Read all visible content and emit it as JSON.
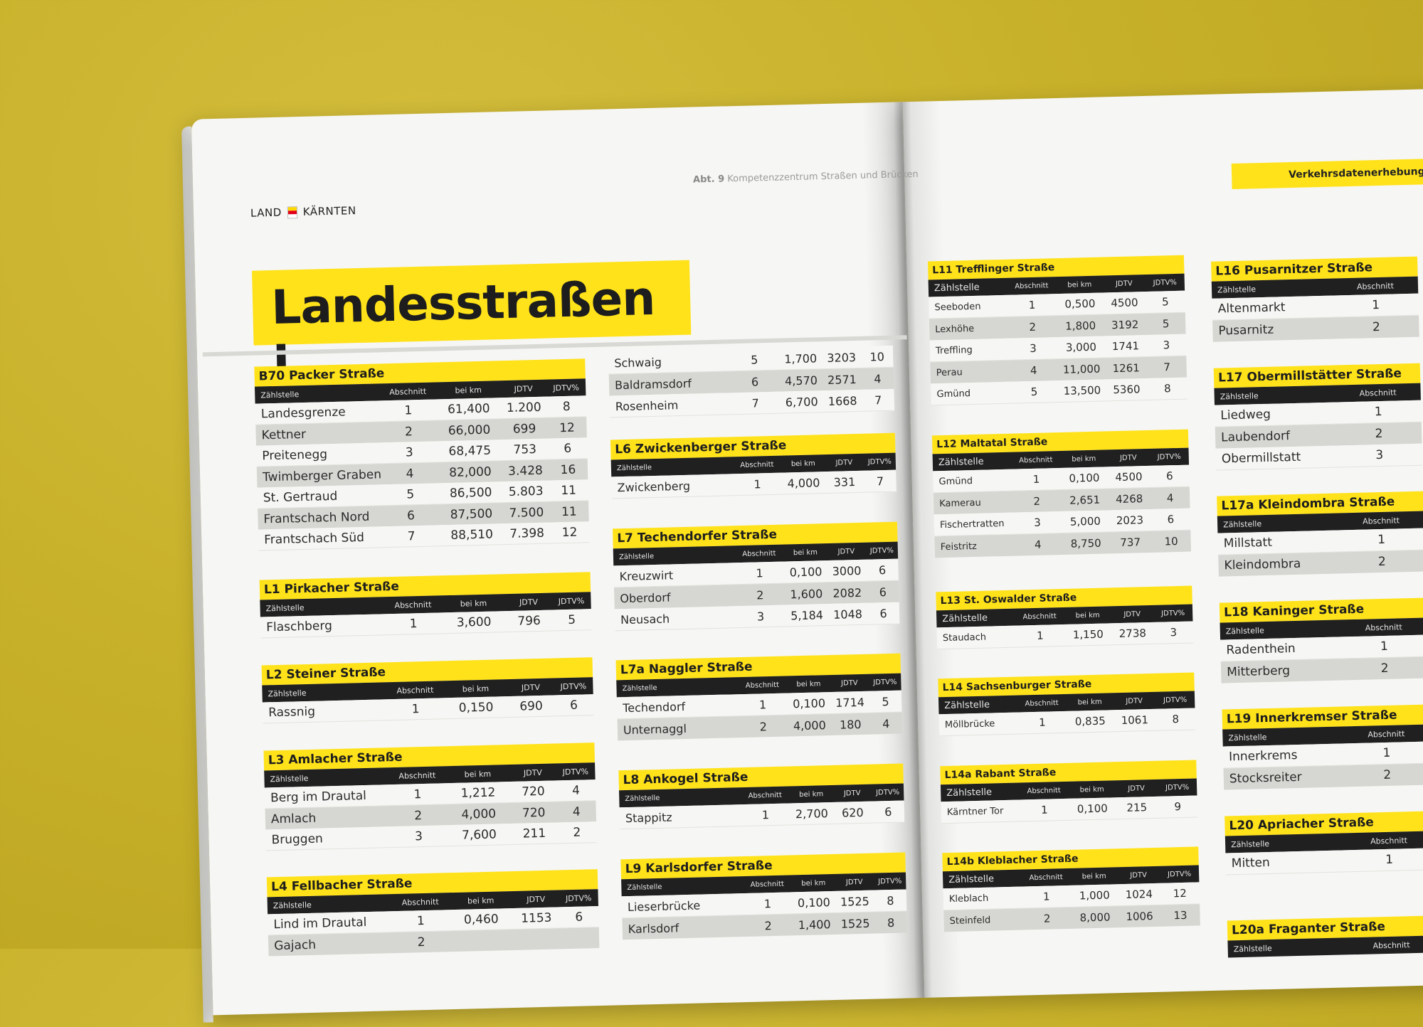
{
  "header": {
    "logo_left": "LAND",
    "logo_right": "KÄRNTEN",
    "department_bold": "Abt. 9",
    "department_text": "Kompetenzzentrum Straßen und Brücken",
    "section_label": "Verkehrsdatenerhebung",
    "title": "Landesstraßen L"
  },
  "colors": {
    "accent": "#ffe21a",
    "header_bar": "#202020",
    "background": "#c8b12a"
  },
  "columns": {
    "station": "Zählstelle",
    "section": "Abschnitt",
    "km": "bei km",
    "jdtv": "JDTV",
    "jdtv_pct": "JDTV%"
  },
  "col1": [
    {
      "title": "B70 Packer Straße",
      "rows": [
        [
          "Landesgrenze",
          "1",
          "61,400",
          "1.200",
          "8"
        ],
        [
          "Kettner",
          "2",
          "66,000",
          "699",
          "12"
        ],
        [
          "Preitenegg",
          "3",
          "68,475",
          "753",
          "6"
        ],
        [
          "Twimberger Graben",
          "4",
          "82,000",
          "3.428",
          "16"
        ],
        [
          "St. Gertraud",
          "5",
          "86,500",
          "5.803",
          "11"
        ],
        [
          "Frantschach Nord",
          "6",
          "87,500",
          "7.500",
          "11"
        ],
        [
          "Frantschach Süd",
          "7",
          "88,510",
          "7.398",
          "12"
        ]
      ]
    },
    {
      "title": "L1 Pirkacher Straße",
      "rows": [
        [
          "Flaschberg",
          "1",
          "3,600",
          "796",
          "5"
        ]
      ]
    },
    {
      "title": "L2 Steiner Straße",
      "rows": [
        [
          "Rassnig",
          "1",
          "0,150",
          "690",
          "6"
        ]
      ]
    },
    {
      "title": "L3 Amlacher Straße",
      "rows": [
        [
          "Berg im Drautal",
          "1",
          "1,212",
          "720",
          "4"
        ],
        [
          "Amlach",
          "2",
          "4,000",
          "720",
          "4"
        ],
        [
          "Bruggen",
          "3",
          "7,600",
          "211",
          "2"
        ]
      ]
    },
    {
      "title": "L4 Fellbacher Straße",
      "rows": [
        [
          "Lind im Drautal",
          "1",
          "0,460",
          "1153",
          "6"
        ],
        [
          "Gajach",
          "2",
          "",
          "",
          ""
        ]
      ]
    }
  ],
  "col2_top": {
    "rows": [
      [
        "Schwaig",
        "5",
        "1,700",
        "3203",
        "10"
      ],
      [
        "Baldramsdorf",
        "6",
        "4,570",
        "2571",
        "4"
      ],
      [
        "Rosenheim",
        "7",
        "6,700",
        "1668",
        "7"
      ]
    ]
  },
  "col2": [
    {
      "title": "L6 Zwickenberger Straße",
      "rows": [
        [
          "Zwickenberg",
          "1",
          "4,000",
          "331",
          "7"
        ]
      ]
    },
    {
      "title": "L7 Techendorfer Straße",
      "rows": [
        [
          "Kreuzwirt",
          "1",
          "0,100",
          "3000",
          "6"
        ],
        [
          "Oberdorf",
          "2",
          "1,600",
          "2082",
          "6"
        ],
        [
          "Neusach",
          "3",
          "5,184",
          "1048",
          "6"
        ]
      ]
    },
    {
      "title": "L7a Naggler Straße",
      "rows": [
        [
          "Techendorf",
          "1",
          "0,100",
          "1714",
          "5"
        ],
        [
          "Unternaggl",
          "2",
          "4,000",
          "180",
          "4"
        ]
      ]
    },
    {
      "title": "L8 Ankogel Straße",
      "rows": [
        [
          "Stappitz",
          "1",
          "2,700",
          "620",
          "6"
        ]
      ]
    },
    {
      "title": "L9 Karlsdorfer Straße",
      "rows": [
        [
          "Lieserbrücke",
          "1",
          "0,100",
          "1525",
          "8"
        ],
        [
          "Karlsdorf",
          "2",
          "1,400",
          "1525",
          "8"
        ]
      ]
    }
  ],
  "col3": [
    {
      "title": "L11 Trefflinger Straße",
      "rows": [
        [
          "Seeboden",
          "1",
          "0,500",
          "4500",
          "5"
        ],
        [
          "Lexhöhe",
          "2",
          "1,800",
          "3192",
          "5"
        ],
        [
          "Treffling",
          "3",
          "3,000",
          "1741",
          "3"
        ],
        [
          "Perau",
          "4",
          "11,000",
          "1261",
          "7"
        ],
        [
          "Gmünd",
          "5",
          "13,500",
          "5360",
          "8"
        ]
      ]
    },
    {
      "title": "L12 Maltatal Straße",
      "rows": [
        [
          "Gmünd",
          "1",
          "0,100",
          "4500",
          "6"
        ],
        [
          "Kamerau",
          "2",
          "2,651",
          "4268",
          "4"
        ],
        [
          "Fischertratten",
          "3",
          "5,000",
          "2023",
          "6"
        ],
        [
          "Feistritz",
          "4",
          "8,750",
          "737",
          "10"
        ]
      ]
    },
    {
      "title": "L13 St. Oswalder Straße",
      "rows": [
        [
          "Staudach",
          "1",
          "1,150",
          "2738",
          "3"
        ]
      ]
    },
    {
      "title": "L14 Sachsenburger Straße",
      "rows": [
        [
          "Möllbrücke",
          "1",
          "0,835",
          "1061",
          "8"
        ]
      ]
    },
    {
      "title": "L14a Rabant Straße",
      "rows": [
        [
          "Kärntner Tor",
          "1",
          "0,100",
          "215",
          "9"
        ]
      ]
    },
    {
      "title": "L14b Kleblacher Straße",
      "rows": [
        [
          "Kleblach",
          "1",
          "1,000",
          "1024",
          "12"
        ],
        [
          "Steinfeld",
          "2",
          "8,000",
          "1006",
          "13"
        ]
      ]
    }
  ],
  "col4": [
    {
      "title": "L16 Pusarnitzer Straße",
      "rows": [
        [
          "Altenmarkt",
          "1"
        ],
        [
          "Pusarnitz",
          "2"
        ]
      ]
    },
    {
      "title": "L17 Obermillstätter Straße",
      "rows": [
        [
          "Liedweg",
          "1"
        ],
        [
          "Laubendorf",
          "2"
        ],
        [
          "Obermillstatt",
          "3"
        ]
      ]
    },
    {
      "title": "L17a Kleindombra Straße",
      "rows": [
        [
          "Millstatt",
          "1"
        ],
        [
          "Kleindombra",
          "2"
        ]
      ]
    },
    {
      "title": "L18 Kaninger Straße",
      "rows": [
        [
          "Radenthein",
          "1"
        ],
        [
          "Mitterberg",
          "2"
        ]
      ]
    },
    {
      "title": "L19 Innerkremser Straße",
      "rows": [
        [
          "Innerkrems",
          "1"
        ],
        [
          "Stocksreiter",
          "2"
        ]
      ]
    },
    {
      "title": "L20 Apriacher Straße",
      "rows": [
        [
          "Mitten",
          "1"
        ]
      ]
    },
    {
      "title": "L20a Fraganter Straße",
      "rows": []
    }
  ]
}
